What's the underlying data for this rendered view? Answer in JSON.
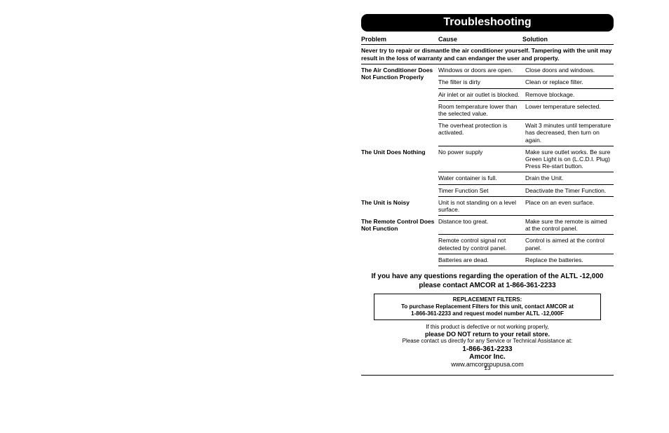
{
  "title": "Troubleshooting",
  "headers": {
    "problem": "Problem",
    "cause": "Cause",
    "solution": "Solution"
  },
  "warning": "Never try to repair or dismantle the air conditioner yourself. Tampering with the unit may result in the loss of warranty and can endanger the user and property.",
  "sections": [
    {
      "problem": "The Air Conditioner Does Not Function Properly",
      "rows": [
        {
          "cause": "Windows or doors are open.",
          "solution": "Close doors and windows."
        },
        {
          "cause": "The filter is dirty",
          "solution": "Clean or replace filter."
        },
        {
          "cause": "Air inlet or air outlet is blocked.",
          "solution": "Remove blockage."
        },
        {
          "cause": "Room temperature lower than the selected value.",
          "solution": "Lower temperature selected."
        },
        {
          "cause": "The overheat protection is activated.",
          "solution": "Wait 3 minutes until temperature has decreased, then turn on again."
        }
      ]
    },
    {
      "problem": "The Unit Does Nothing",
      "rows": [
        {
          "cause": "No power supply",
          "solution": "Make sure outlet works. Be sure Green Light is on (L.C.D.I. Plug) Press Re-start button."
        },
        {
          "cause": "Water container is full.",
          "solution": "Drain the Unit."
        },
        {
          "cause": "Timer Function Set",
          "solution": "Deactivate the Timer Function."
        }
      ]
    },
    {
      "problem": "The Unit is Noisy",
      "rows": [
        {
          "cause": "Unit is not standing on a level surface.",
          "solution": "Place on an even surface."
        }
      ]
    },
    {
      "problem": "The Remote Control Does Not Function",
      "rows": [
        {
          "cause": "Distance too great.",
          "solution": "Make sure the remote is aimed at the control panel."
        },
        {
          "cause": "Remote control signal not detected by control panel.",
          "solution": "Control is aimed at the control panel."
        },
        {
          "cause": "Batteries are dead.",
          "solution": "Replace the batteries."
        }
      ]
    }
  ],
  "questions_line1": "If you have any questions regarding the operation of the ALTL -12,000",
  "questions_line2": "please contact  AMCOR at 1-866-361-2233",
  "filters_title": "REPLACEMENT FILTERS:",
  "filters_line1": "To purchase Replacement Filters for this unit, contact AMCOR at",
  "filters_line2": "1-866-361-2233 and request model number ALTL -12,000F",
  "defective": "If this product is defective or not working properly,",
  "noreturn": "please DO NOT return to your retail store.",
  "contact_direct": "Please contact us directly for any Service or Technical Assistance at:",
  "phone": "1-866-361-2233",
  "company": "Amcor Inc.",
  "url": "www.amcorgroupusa.com",
  "page_number": "13"
}
